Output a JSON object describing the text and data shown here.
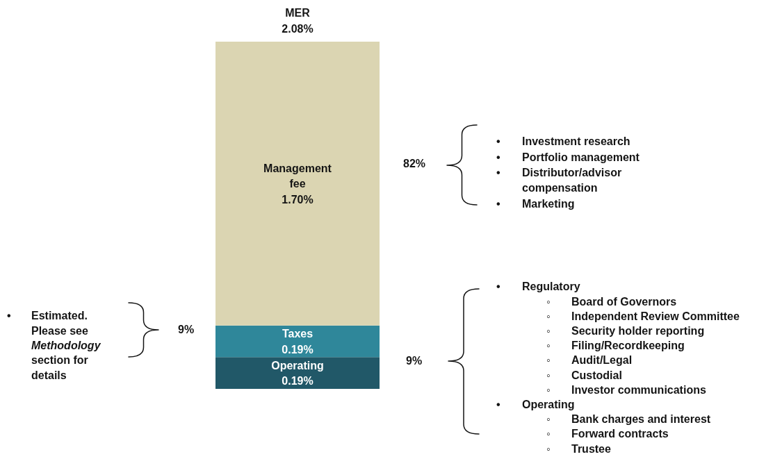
{
  "chart_data": {
    "type": "bar",
    "title": "MER",
    "categories": [
      null
    ],
    "stacked": true,
    "ylim": [
      0,
      2.08
    ],
    "tick_labels": false,
    "series": [
      {
        "name": "Operating",
        "color": "#215868",
        "values": [
          0.19
        ],
        "value_labels": [
          "0.19%"
        ]
      },
      {
        "name": "Taxes",
        "color": "#2f879a",
        "values": [
          0.19
        ],
        "value_labels": [
          "0.19%"
        ]
      },
      {
        "name": "Management fee",
        "color": "#dbd5b2",
        "values": [
          1.7
        ],
        "value_labels": [
          "1.70%"
        ]
      }
    ],
    "totals": [
      "2.08%"
    ],
    "annotations": [
      "82%",
      "• Investment research",
      "• Portfolio management",
      "• Distributor/advisor compensation",
      "• Marketing",
      "• Estimated. Please see Methodology section for details",
      "9%",
      "9%",
      "• Regulatory",
      "◦ Board of Governors",
      "◦ Independent Review Committee",
      "◦ Security holder reporting",
      "◦ Filing/Recordkeeping",
      "◦ Audit/Legal",
      "◦ Custodial",
      "◦ Investor communications",
      "• Operating",
      "◦ Bank charges and interest",
      "◦ Forward contracts",
      "◦ Trustee"
    ]
  }
}
